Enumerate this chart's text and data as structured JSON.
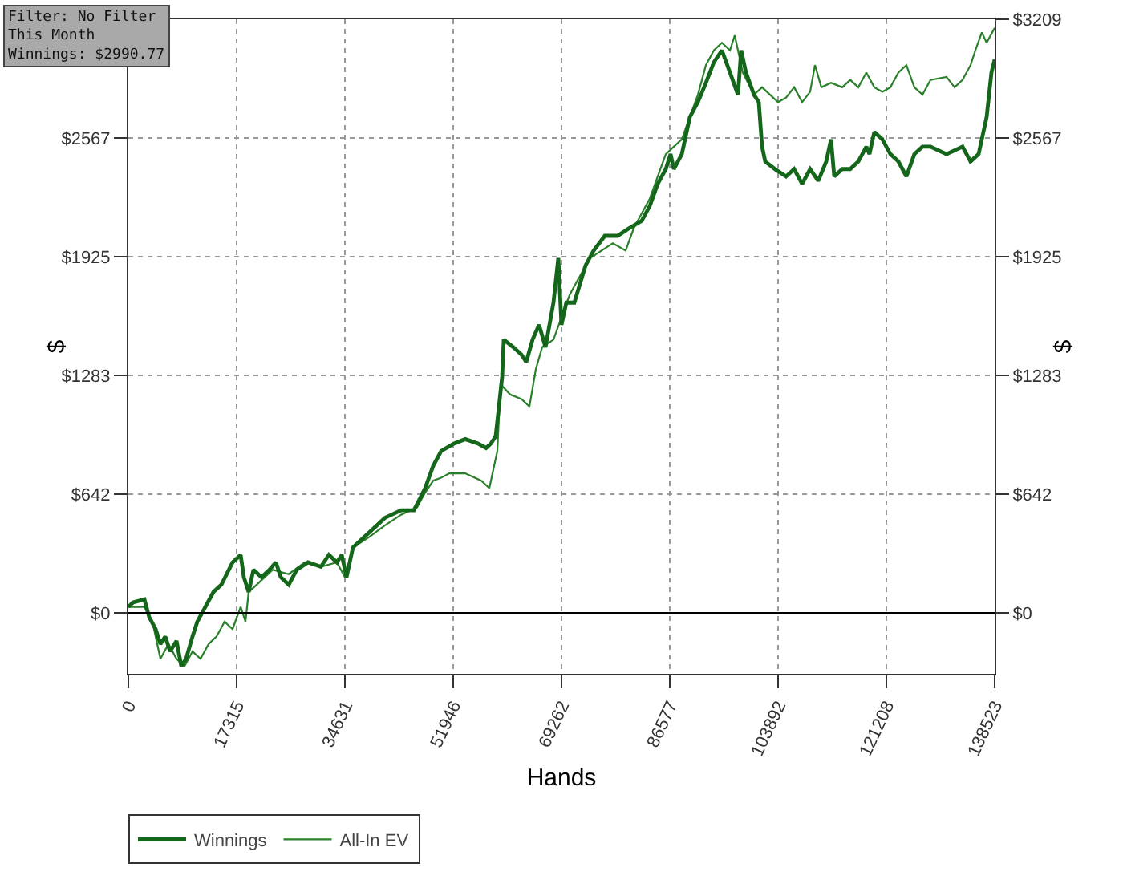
{
  "chart_data": {
    "type": "line",
    "xlabel": "Hands",
    "ylabel": "$",
    "y2label": "$",
    "annotations": [
      "Filter: No Filter\nThis Month\nWinnings: $2990.77"
    ],
    "xlim": [
      0,
      138523
    ],
    "xticks": [
      0,
      17315,
      34631,
      51946,
      69262,
      86577,
      103892,
      121208,
      138523
    ],
    "ylim": [
      -330,
      3209
    ],
    "yticks": [
      {
        "value": 0,
        "label": "$0"
      },
      {
        "value": 642,
        "label": "$642"
      },
      {
        "value": 1283,
        "label": "$1283"
      },
      {
        "value": 1925,
        "label": "$1925"
      },
      {
        "value": 2567,
        "label": "$2567"
      }
    ],
    "y2lim": [
      -330,
      3209
    ],
    "y2ticks": [
      {
        "value": 0,
        "label": "$0"
      },
      {
        "value": 642,
        "label": "$642"
      },
      {
        "value": 1283,
        "label": "$1283"
      },
      {
        "value": 1925,
        "label": "$1925"
      },
      {
        "value": 2567,
        "label": "$2567"
      },
      {
        "value": 3209,
        "label": "$3209"
      }
    ],
    "grid": true,
    "legend": "bottom left",
    "marker": "none",
    "line_style": "solid",
    "ref_lines": [
      {
        "axis": "y",
        "value": 0,
        "color": "#000000"
      }
    ],
    "series": [
      {
        "name": "Winnings",
        "color": "#14661a",
        "x": [
          0,
          770,
          2565,
          3335,
          4360,
          5130,
          5900,
          6670,
          7700,
          8470,
          9230,
          10260,
          11030,
          12310,
          13600,
          14880,
          16670,
          17960,
          18470,
          19240,
          20010,
          21290,
          22570,
          23600,
          24370,
          25650,
          26930,
          28730,
          30780,
          32070,
          33350,
          34120,
          34890,
          35910,
          38480,
          41040,
          43610,
          45660,
          47460,
          48740,
          50020,
          52070,
          53870,
          55920,
          57200,
          57970,
          58740,
          59260,
          59770,
          60030,
          61560,
          62850,
          63620,
          64640,
          65670,
          66700,
          67980,
          68750,
          69260,
          70030,
          71310,
          73110,
          74390,
          76190,
          78240,
          80030,
          82090,
          83370,
          84650,
          85940,
          86700,
          87220,
          88500,
          89270,
          89780,
          91070,
          92350,
          93630,
          94910,
          96200,
          97480,
          97990,
          98760,
          100040,
          100810,
          101330,
          101840,
          103380,
          105170,
          106460,
          107740,
          109020,
          110310,
          111590,
          112360,
          112870,
          114150,
          115430,
          116720,
          118000,
          118510,
          119280,
          120560,
          121850,
          123130,
          124410,
          125690,
          126980,
          128260,
          130830,
          133390,
          134670,
          135960,
          137240,
          138010,
          138523
        ],
        "values": [
          32,
          56,
          72,
          -24,
          -88,
          -169,
          -128,
          -209,
          -152,
          -289,
          -249,
          -128,
          -48,
          32,
          112,
          152,
          273,
          313,
          193,
          112,
          233,
          193,
          233,
          273,
          193,
          152,
          233,
          273,
          249,
          313,
          273,
          313,
          193,
          353,
          433,
          514,
          554,
          554,
          674,
          794,
          875,
          915,
          939,
          915,
          891,
          915,
          955,
          1115,
          1276,
          1477,
          1436,
          1396,
          1356,
          1477,
          1557,
          1436,
          1677,
          1918,
          1557,
          1677,
          1677,
          1878,
          1958,
          2038,
          2038,
          2078,
          2119,
          2199,
          2319,
          2399,
          2480,
          2399,
          2480,
          2600,
          2680,
          2761,
          2865,
          2977,
          3041,
          2921,
          2801,
          3041,
          2921,
          2801,
          2761,
          2520,
          2440,
          2399,
          2359,
          2399,
          2319,
          2399,
          2335,
          2440,
          2560,
          2359,
          2399,
          2399,
          2440,
          2520,
          2480,
          2600,
          2560,
          2480,
          2440,
          2359,
          2480,
          2520,
          2520,
          2480,
          2520,
          2440,
          2480,
          2680,
          2921,
          2991
        ]
      },
      {
        "name": "All-In EV",
        "color": "#2a7f2a",
        "x": [
          0,
          2565,
          3850,
          5130,
          6410,
          7700,
          8980,
          10260,
          11540,
          12830,
          14110,
          15390,
          16670,
          17960,
          18730,
          19240,
          20520,
          23090,
          25650,
          28220,
          30780,
          33350,
          34630,
          35910,
          38480,
          41040,
          43610,
          46170,
          47460,
          48740,
          50020,
          51300,
          53870,
          56430,
          57720,
          58490,
          59000,
          59510,
          61050,
          62850,
          64130,
          65150,
          66180,
          67980,
          69260,
          70540,
          71830,
          73880,
          75670,
          77470,
          79520,
          80800,
          82090,
          83370,
          84650,
          85940,
          87220,
          88500,
          89780,
          91070,
          92350,
          93630,
          94910,
          96200,
          96960,
          98250,
          100040,
          101330,
          102610,
          103890,
          105170,
          106460,
          107740,
          109020,
          109790,
          110820,
          112360,
          114150,
          115430,
          116720,
          118000,
          119280,
          120560,
          121850,
          123130,
          124410,
          125690,
          126980,
          128260,
          130830,
          132110,
          133390,
          134670,
          135440,
          136470,
          137240,
          138523
        ],
        "values": [
          32,
          32,
          -48,
          -249,
          -169,
          -249,
          -289,
          -209,
          -249,
          -169,
          -128,
          -48,
          -88,
          32,
          -48,
          112,
          152,
          233,
          209,
          273,
          249,
          273,
          193,
          353,
          409,
          473,
          530,
          570,
          650,
          714,
          730,
          754,
          754,
          714,
          674,
          794,
          875,
          1236,
          1180,
          1156,
          1115,
          1316,
          1436,
          1477,
          1597,
          1717,
          1798,
          1918,
          1958,
          1998,
          1958,
          2078,
          2159,
          2239,
          2359,
          2480,
          2520,
          2560,
          2680,
          2801,
          2961,
          3041,
          3082,
          3041,
          3122,
          2921,
          2801,
          2841,
          2801,
          2761,
          2785,
          2841,
          2761,
          2817,
          2961,
          2841,
          2865,
          2841,
          2881,
          2841,
          2921,
          2841,
          2817,
          2841,
          2921,
          2961,
          2841,
          2801,
          2881,
          2897,
          2841,
          2881,
          2961,
          3041,
          3138,
          3082,
          3162
        ]
      }
    ]
  }
}
